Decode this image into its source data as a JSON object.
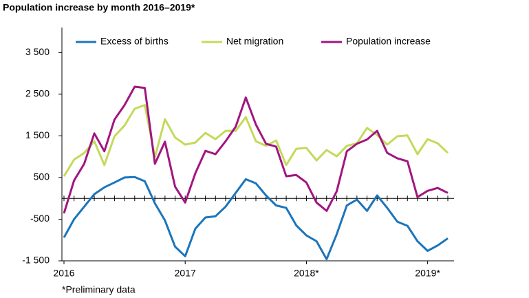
{
  "chart_data": {
    "type": "line",
    "title": "Population increase by month 2016–2019*",
    "note": "*Preliminary data",
    "categories": [
      "2016",
      null,
      null,
      null,
      null,
      null,
      null,
      null,
      null,
      null,
      null,
      null,
      "2017",
      null,
      null,
      null,
      null,
      null,
      null,
      null,
      null,
      null,
      null,
      null,
      "2018*",
      null,
      null,
      null,
      null,
      null,
      null,
      null,
      null,
      null,
      null,
      null,
      "2019*",
      null,
      null
    ],
    "series": [
      {
        "name": "Excess of births",
        "color": "#1b75bb",
        "values": [
          -940,
          -500,
          -200,
          100,
          265,
          380,
          500,
          510,
          410,
          -120,
          -530,
          -1160,
          -1390,
          -730,
          -460,
          -430,
          -200,
          130,
          460,
          360,
          70,
          -170,
          -230,
          -650,
          -890,
          -1030,
          -1460,
          -860,
          -170,
          -30,
          -300,
          70,
          -230,
          -560,
          -660,
          -1030,
          -1260,
          -1130,
          -960
        ]
      },
      {
        "name": "Net migration",
        "color": "#c5d95a",
        "values": [
          530,
          930,
          1090,
          1370,
          800,
          1490,
          1750,
          2150,
          2240,
          990,
          1900,
          1460,
          1290,
          1340,
          1570,
          1420,
          1620,
          1620,
          1950,
          1370,
          1260,
          1390,
          800,
          1190,
          1210,
          910,
          1160,
          1010,
          1260,
          1320,
          1690,
          1520,
          1290,
          1490,
          1510,
          1060,
          1420,
          1320,
          1090
        ]
      },
      {
        "name": "Population increase",
        "color": "#a1167f",
        "values": [
          -360,
          430,
          830,
          1560,
          1130,
          1890,
          2240,
          2680,
          2650,
          830,
          1360,
          280,
          -100,
          600,
          1140,
          1060,
          1370,
          1720,
          2420,
          1770,
          1310,
          1240,
          530,
          560,
          380,
          -100,
          -300,
          170,
          1130,
          1310,
          1410,
          1620,
          1090,
          960,
          890,
          30,
          180,
          250,
          130
        ]
      }
    ],
    "ylim": [
      -1500,
      4100
    ],
    "yticks": [
      {
        "value": 3500,
        "label": "3 500"
      },
      {
        "value": 2500,
        "label": "2 500"
      },
      {
        "value": 1500,
        "label": "1 500"
      },
      500,
      -500,
      {
        "value": -1500,
        "label": "-1 500"
      }
    ],
    "grid": false,
    "legend": "top"
  }
}
